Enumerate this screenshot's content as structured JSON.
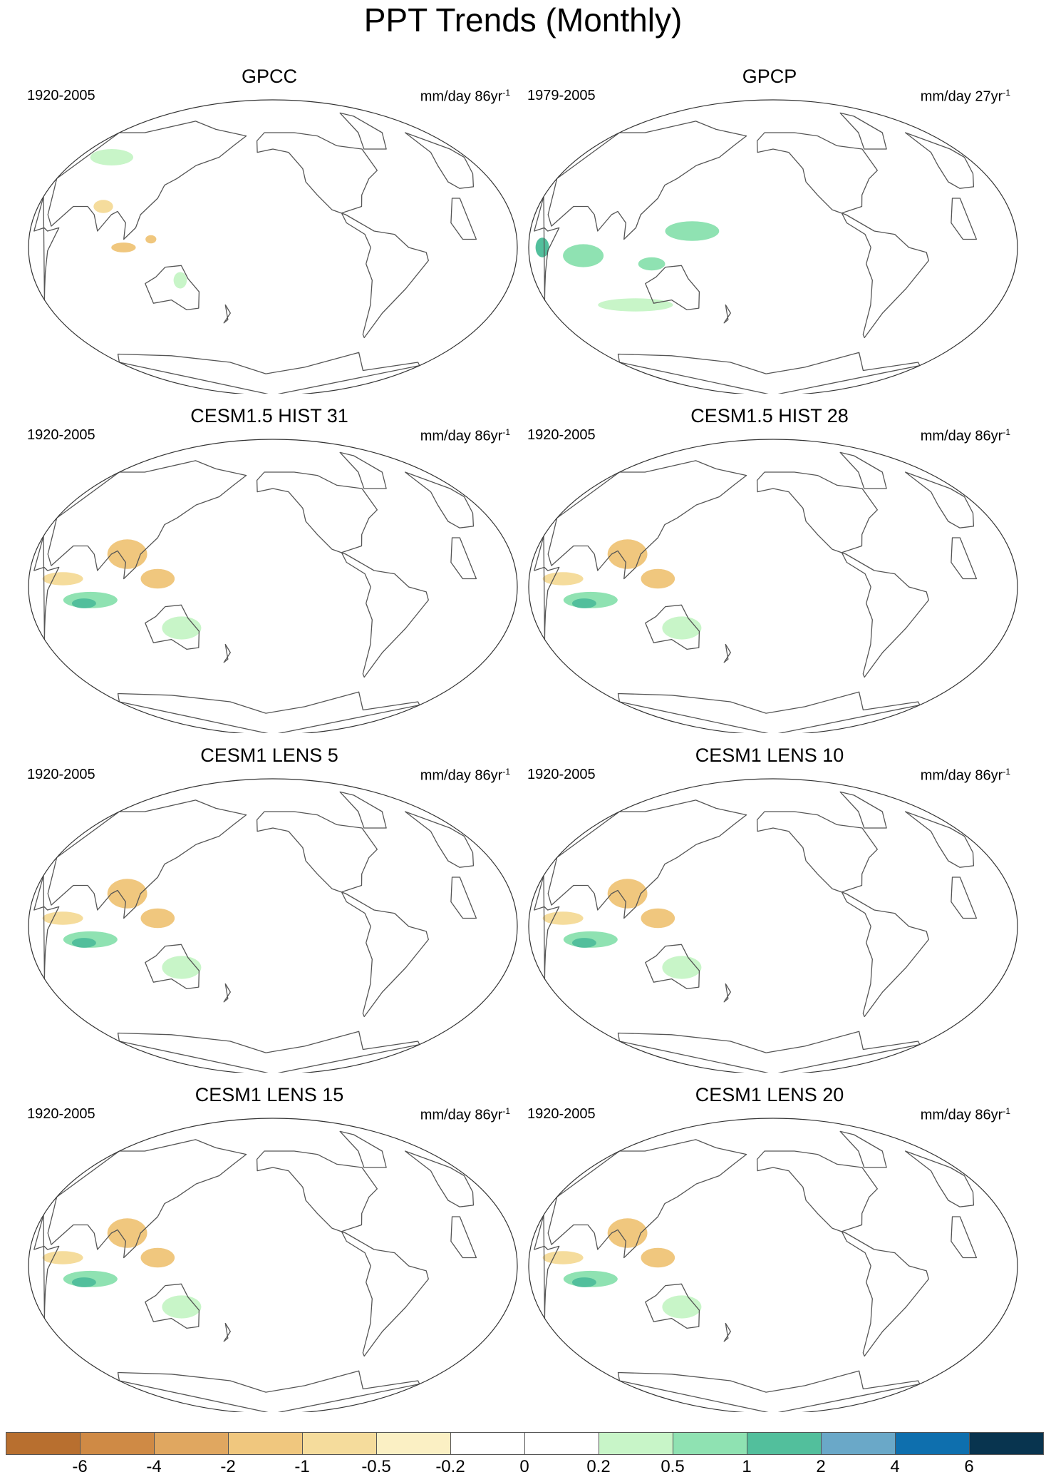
{
  "title": "PPT Trends (Monthly)",
  "panels": [
    {
      "title": "GPCC",
      "period": "1920-2005",
      "units": "mm/day 86yr",
      "units_exp": "-1",
      "pattern": "gpcc"
    },
    {
      "title": "GPCP",
      "period": "1979-2005",
      "units": "mm/day 27yr",
      "units_exp": "-1",
      "pattern": "gpcp"
    },
    {
      "title": "CESM1.5 HIST 31",
      "period": "1920-2005",
      "units": "mm/day 86yr",
      "units_exp": "-1",
      "pattern": "model"
    },
    {
      "title": "CESM1.5 HIST 28",
      "period": "1920-2005",
      "units": "mm/day 86yr",
      "units_exp": "-1",
      "pattern": "model"
    },
    {
      "title": "CESM1 LENS 5",
      "period": "1920-2005",
      "units": "mm/day 86yr",
      "units_exp": "-1",
      "pattern": "model"
    },
    {
      "title": "CESM1 LENS 10",
      "period": "1920-2005",
      "units": "mm/day 86yr",
      "units_exp": "-1",
      "pattern": "model"
    },
    {
      "title": "CESM1 LENS 15",
      "period": "1920-2005",
      "units": "mm/day 86yr",
      "units_exp": "-1",
      "pattern": "model"
    },
    {
      "title": "CESM1 LENS 20",
      "period": "1920-2005",
      "units": "mm/day 86yr",
      "units_exp": "-1",
      "pattern": "model"
    }
  ],
  "colorbar": {
    "colors": [
      "#b86f2f",
      "#cf8a45",
      "#e0a760",
      "#f0c77e",
      "#f5dc9c",
      "#fbf0c4",
      "#ffffff",
      "#ffffff",
      "#c8f5c8",
      "#8fe2b2",
      "#52bf9c",
      "#6aa8c8",
      "#0e6fae",
      "#08344f"
    ],
    "labels": [
      "-6",
      "-4",
      "-2",
      "-1",
      "-0.5",
      "-0.2",
      "0",
      "0.2",
      "0.5",
      "1",
      "2",
      "4",
      "6"
    ]
  },
  "colors": {
    "dry_light": "#f5dc9c",
    "dry_mid": "#f0c77e",
    "dry_strong": "#e0a760",
    "wet_light": "#c8f5c8",
    "wet_mid": "#8fe2b2",
    "wet_strong": "#52bf9c",
    "coast": "#555555"
  }
}
